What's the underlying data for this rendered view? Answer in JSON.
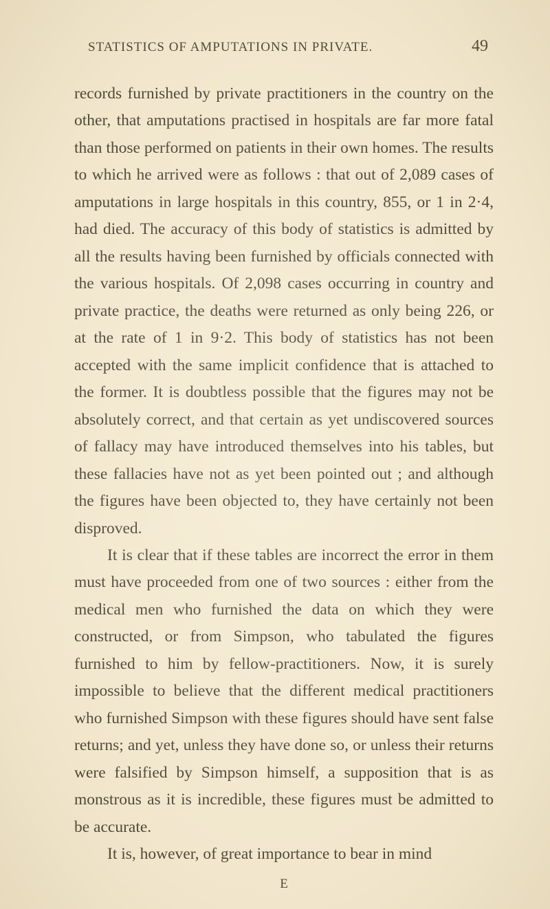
{
  "header": {
    "title": "STATISTICS OF AMPUTATIONS IN PRIVATE.",
    "pageNumber": "49"
  },
  "paragraphs": {
    "p1": "records furnished by private practitioners in the country on the other, that amputations practised in hospitals are far more fatal than those performed on patients in their own homes. The results to which he arrived were as follows : that out of 2,089 cases of amputations in large hospitals in this country, 855, or 1 in 2·4, had died. The accuracy of this body of statistics is admitted by all the results having been furnished by officials connected with the various hospitals. Of 2,098 cases occurring in country and private practice, the deaths were returned as only being 226, or at the rate of 1 in 9·2. This body of statistics has not been accepted with the same implicit confidence that is attached to the former. It is doubtless possible that the figures may not be absolutely correct, and that certain as yet undiscovered sources of fallacy may have introduced themselves into his tables, but these fallacies have not as yet been pointed out ; and although the figures have been objected to, they have certainly not been disproved.",
    "p2": "It is clear that if these tables are incorrect the error in them must have proceeded from one of two sources : either from the medical men who furnished the data on which they were constructed, or from Simpson, who tabulated the figures furnished to him by fellow-practitioners. Now, it is surely impossible to believe that the different medical practitioners who furnished Simpson with these figures should have sent false returns; and yet, unless they have done so, or unless their returns were falsified by Simpson himself, a supposition that is as monstrous as it is incredible, these figures must be admitted to be accurate.",
    "p3": "It is, however, of great importance to bear in mind"
  },
  "footer": {
    "mark": "E"
  },
  "colors": {
    "background": "#f4ead2",
    "text": "#2a2418"
  },
  "typography": {
    "headerFontSize": 19,
    "pageNumberFontSize": 24,
    "bodyFontSize": 23.5,
    "lineHeight": 1.68,
    "fontFamily": "Georgia, Times New Roman, serif"
  }
}
